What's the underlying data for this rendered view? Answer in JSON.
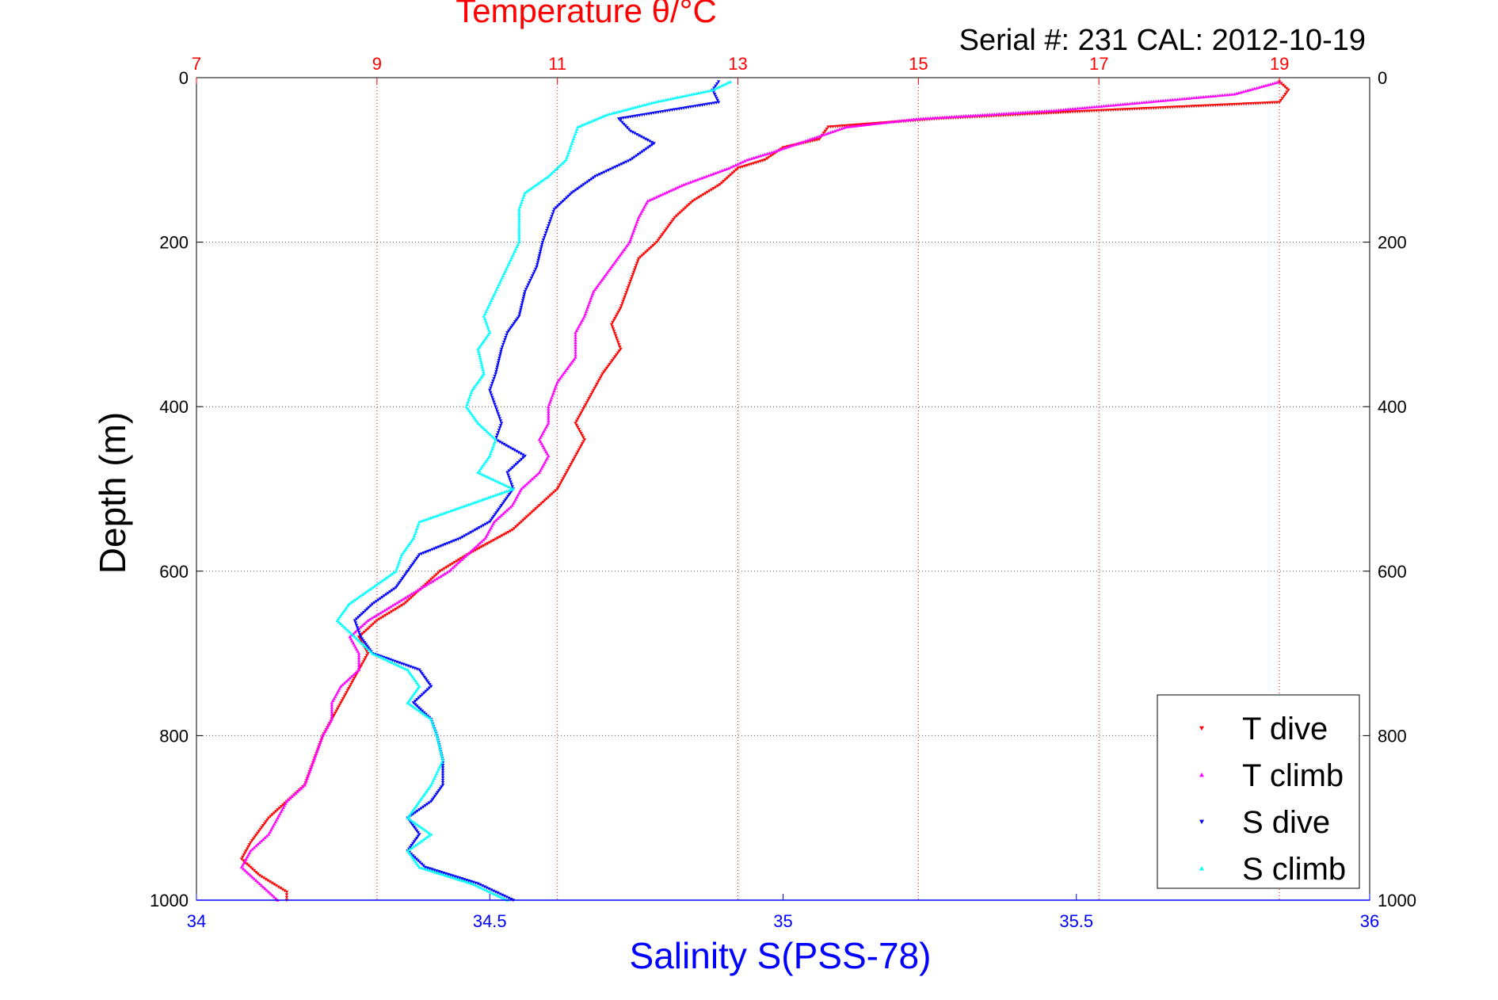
{
  "chart_data": {
    "type": "scatter",
    "title": "Temperature θ/°C",
    "subtitle": "Serial #: 231  CAL: 2012-10-19",
    "xlabel": "Salinity S(PSS-78)",
    "ylabel": "Depth (m)",
    "x_bottom": {
      "label": "Salinity S(PSS-78)",
      "range": [
        34,
        36
      ],
      "ticks": [
        "34",
        "34.5",
        "35",
        "35.5",
        "36"
      ],
      "color": "#0000ff"
    },
    "x_top": {
      "label": "Temperature θ/°C",
      "range": [
        7,
        20
      ],
      "ticks": [
        "7",
        "9",
        "11",
        "13",
        "15",
        "17",
        "19"
      ],
      "color": "#ff0000"
    },
    "y": {
      "label": "Depth (m)",
      "range": [
        0,
        1000
      ],
      "reversed": true,
      "ticks": [
        "0",
        "200",
        "400",
        "600",
        "800",
        "1000"
      ]
    },
    "grid": true,
    "legend_position": "bottom-right",
    "series": [
      {
        "name": "T dive",
        "axis": "temperature",
        "color": "#ff0000",
        "marker": "triangle-down",
        "depth": [
          5,
          15,
          30,
          40,
          50,
          60,
          75,
          85,
          100,
          110,
          130,
          150,
          170,
          200,
          220,
          250,
          280,
          300,
          330,
          360,
          380,
          400,
          420,
          440,
          460,
          480,
          500,
          520,
          550,
          580,
          600,
          620,
          640,
          660,
          680,
          700,
          720,
          740,
          760,
          780,
          800,
          830,
          860,
          880,
          900,
          930,
          950,
          970,
          990,
          1000
        ],
        "values": [
          19.0,
          19.1,
          19.0,
          17.0,
          15.2,
          14.0,
          13.9,
          13.5,
          13.3,
          13.0,
          12.8,
          12.5,
          12.3,
          12.1,
          11.9,
          11.8,
          11.7,
          11.6,
          11.7,
          11.5,
          11.4,
          11.3,
          11.2,
          11.3,
          11.2,
          11.1,
          11.0,
          10.8,
          10.5,
          10.0,
          9.7,
          9.5,
          9.3,
          9.0,
          8.8,
          8.9,
          8.8,
          8.7,
          8.6,
          8.5,
          8.4,
          8.3,
          8.2,
          8.0,
          7.8,
          7.6,
          7.5,
          7.7,
          8.0,
          8.0
        ]
      },
      {
        "name": "T climb",
        "axis": "temperature",
        "color": "#ff00ff",
        "marker": "triangle-up",
        "depth": [
          5,
          20,
          30,
          40,
          50,
          60,
          75,
          90,
          100,
          110,
          130,
          150,
          170,
          200,
          230,
          260,
          290,
          310,
          340,
          370,
          400,
          420,
          440,
          460,
          480,
          500,
          520,
          540,
          560,
          580,
          600,
          620,
          640,
          660,
          680,
          700,
          720,
          740,
          760,
          780,
          800,
          830,
          860,
          880,
          900,
          920,
          940,
          960,
          980,
          1000
        ],
        "values": [
          19.0,
          18.5,
          17.5,
          16.5,
          15.0,
          14.2,
          13.8,
          13.4,
          13.1,
          12.9,
          12.4,
          12.0,
          11.9,
          11.8,
          11.6,
          11.4,
          11.3,
          11.2,
          11.2,
          11.0,
          10.9,
          10.9,
          10.8,
          10.9,
          10.8,
          10.6,
          10.5,
          10.3,
          10.2,
          10.0,
          9.8,
          9.5,
          9.2,
          8.9,
          8.7,
          8.8,
          8.8,
          8.6,
          8.5,
          8.5,
          8.4,
          8.3,
          8.2,
          8.0,
          7.9,
          7.8,
          7.6,
          7.5,
          7.7,
          7.9
        ]
      },
      {
        "name": "S dive",
        "axis": "salinity",
        "color": "#0000ff",
        "marker": "triangle-down",
        "depth": [
          5,
          15,
          30,
          50,
          65,
          80,
          100,
          120,
          140,
          160,
          180,
          200,
          230,
          260,
          290,
          310,
          330,
          360,
          380,
          400,
          420,
          440,
          460,
          480,
          500,
          520,
          540,
          560,
          580,
          600,
          620,
          640,
          660,
          680,
          700,
          720,
          740,
          760,
          780,
          800,
          830,
          860,
          880,
          900,
          920,
          940,
          960,
          980,
          1000
        ],
        "values": [
          34.89,
          34.88,
          34.89,
          34.72,
          34.74,
          34.78,
          34.74,
          34.68,
          34.64,
          34.61,
          34.6,
          34.59,
          34.58,
          34.56,
          34.55,
          34.53,
          34.52,
          34.51,
          34.5,
          34.51,
          34.52,
          34.51,
          34.56,
          34.53,
          34.54,
          34.52,
          34.5,
          34.45,
          34.38,
          34.36,
          34.34,
          34.3,
          34.27,
          34.28,
          34.3,
          34.38,
          34.4,
          34.37,
          34.4,
          34.41,
          34.42,
          34.42,
          34.4,
          34.36,
          34.38,
          34.36,
          34.39,
          34.48,
          34.54
        ]
      },
      {
        "name": "S climb",
        "axis": "salinity",
        "color": "#00ffff",
        "marker": "triangle-up",
        "depth": [
          5,
          15,
          30,
          45,
          60,
          80,
          100,
          120,
          140,
          160,
          180,
          200,
          230,
          260,
          290,
          310,
          330,
          360,
          380,
          400,
          420,
          440,
          460,
          480,
          500,
          520,
          540,
          560,
          580,
          600,
          620,
          640,
          660,
          680,
          700,
          720,
          740,
          760,
          780,
          800,
          830,
          860,
          880,
          900,
          920,
          940,
          960,
          980,
          1000
        ],
        "values": [
          34.91,
          34.88,
          34.78,
          34.7,
          34.65,
          34.64,
          34.63,
          34.6,
          34.56,
          34.55,
          34.55,
          34.55,
          34.53,
          34.51,
          34.49,
          34.5,
          34.48,
          34.49,
          34.47,
          34.46,
          34.48,
          34.51,
          34.5,
          34.48,
          34.54,
          34.46,
          34.38,
          34.37,
          34.35,
          34.34,
          34.3,
          34.26,
          34.24,
          34.27,
          34.3,
          34.36,
          34.38,
          34.36,
          34.4,
          34.41,
          34.42,
          34.4,
          34.38,
          34.36,
          34.4,
          34.36,
          34.38,
          34.47,
          34.53
        ]
      }
    ]
  }
}
